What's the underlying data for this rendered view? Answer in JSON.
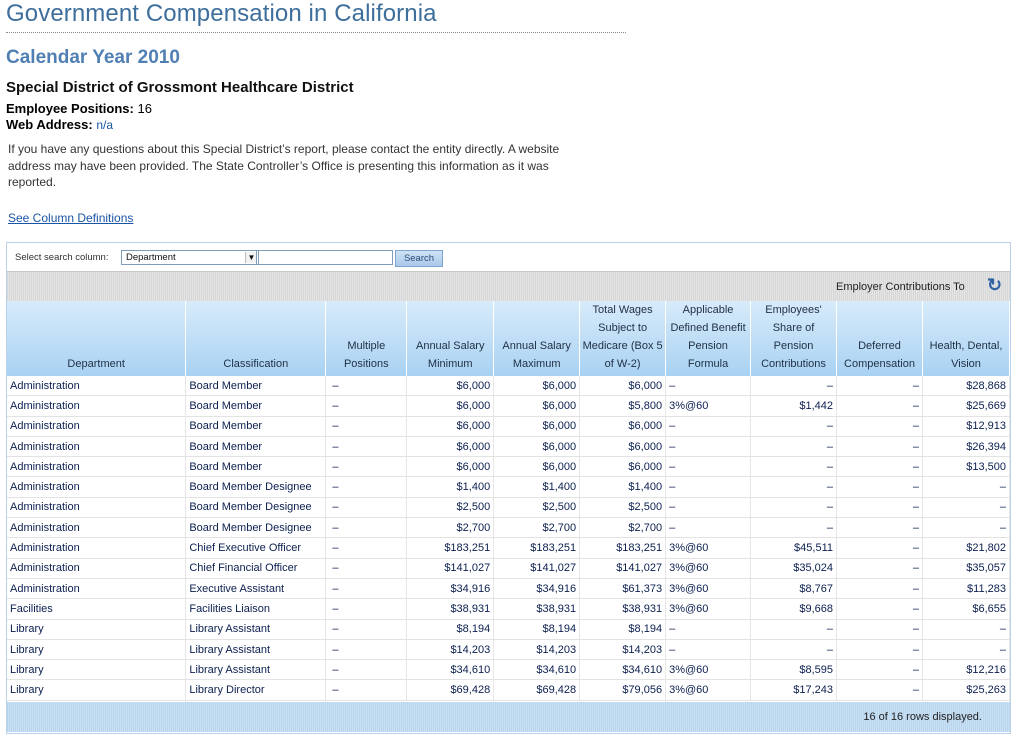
{
  "page": {
    "title": "Government Compensation in California",
    "year": "Calendar Year 2010",
    "district": "Special District of Grossmont Healthcare District",
    "positions_label": "Employee Positions:",
    "positions_value": "16",
    "web_label": "Web Address:",
    "web_value": "n/a",
    "intro": "If you have any questions about this Special District’s report, please contact the entity directly. A website address may have been provided. The State Controller’s Office is presenting this information as it was reported.",
    "coldefs_link": "See Column Definitions"
  },
  "search": {
    "label": "Select search column:",
    "selected": "Department",
    "button": "Search"
  },
  "band": {
    "employer_label": "Employer Contributions To",
    "refresh_icon": "refresh-icon"
  },
  "columns": [
    "Department",
    "Classification",
    "Multiple Positions",
    "Annual Salary Minimum",
    "Annual Salary Maximum",
    "Total Wages Subject to Medicare (Box 5 of W-2)",
    "Applicable Defined Benefit Pension Formula",
    "Employees' Share of Pension Contributions",
    "Deferred Compensation",
    "Health, Dental, Vision"
  ],
  "rows": [
    [
      "Administration",
      "Board Member",
      "–",
      "$6,000",
      "$6,000",
      "$6,000",
      "–",
      "–",
      "–",
      "$28,868"
    ],
    [
      "Administration",
      "Board Member",
      "–",
      "$6,000",
      "$6,000",
      "$5,800",
      "3%@60",
      "$1,442",
      "–",
      "$25,669"
    ],
    [
      "Administration",
      "Board Member",
      "–",
      "$6,000",
      "$6,000",
      "$6,000",
      "–",
      "–",
      "–",
      "$12,913"
    ],
    [
      "Administration",
      "Board Member",
      "–",
      "$6,000",
      "$6,000",
      "$6,000",
      "–",
      "–",
      "–",
      "$26,394"
    ],
    [
      "Administration",
      "Board Member",
      "–",
      "$6,000",
      "$6,000",
      "$6,000",
      "–",
      "–",
      "–",
      "$13,500"
    ],
    [
      "Administration",
      "Board Member Designee",
      "–",
      "$1,400",
      "$1,400",
      "$1,400",
      "–",
      "–",
      "–",
      "–"
    ],
    [
      "Administration",
      "Board Member Designee",
      "–",
      "$2,500",
      "$2,500",
      "$2,500",
      "–",
      "–",
      "–",
      "–"
    ],
    [
      "Administration",
      "Board Member Designee",
      "–",
      "$2,700",
      "$2,700",
      "$2,700",
      "–",
      "–",
      "–",
      "–"
    ],
    [
      "Administration",
      "Chief Executive Officer",
      "–",
      "$183,251",
      "$183,251",
      "$183,251",
      "3%@60",
      "$45,511",
      "–",
      "$21,802"
    ],
    [
      "Administration",
      "Chief Financial Officer",
      "–",
      "$141,027",
      "$141,027",
      "$141,027",
      "3%@60",
      "$35,024",
      "–",
      "$35,057"
    ],
    [
      "Administration",
      "Executive Assistant",
      "–",
      "$34,916",
      "$34,916",
      "$61,373",
      "3%@60",
      "$8,767",
      "–",
      "$11,283"
    ],
    [
      "Facilities",
      "Facilities Liaison",
      "–",
      "$38,931",
      "$38,931",
      "$38,931",
      "3%@60",
      "$9,668",
      "–",
      "$6,655"
    ],
    [
      "Library",
      "Library Assistant",
      "–",
      "$8,194",
      "$8,194",
      "$8,194",
      "–",
      "–",
      "–",
      "–"
    ],
    [
      "Library",
      "Library Assistant",
      "–",
      "$14,203",
      "$14,203",
      "$14,203",
      "–",
      "–",
      "–",
      "–"
    ],
    [
      "Library",
      "Library Assistant",
      "–",
      "$34,610",
      "$34,610",
      "$34,610",
      "3%@60",
      "$8,595",
      "–",
      "$12,216"
    ],
    [
      "Library",
      "Library Director",
      "–",
      "$69,428",
      "$69,428",
      "$79,056",
      "3%@60",
      "$17,243",
      "–",
      "$25,263"
    ]
  ],
  "footer": {
    "status": "16 of 16 rows displayed."
  }
}
